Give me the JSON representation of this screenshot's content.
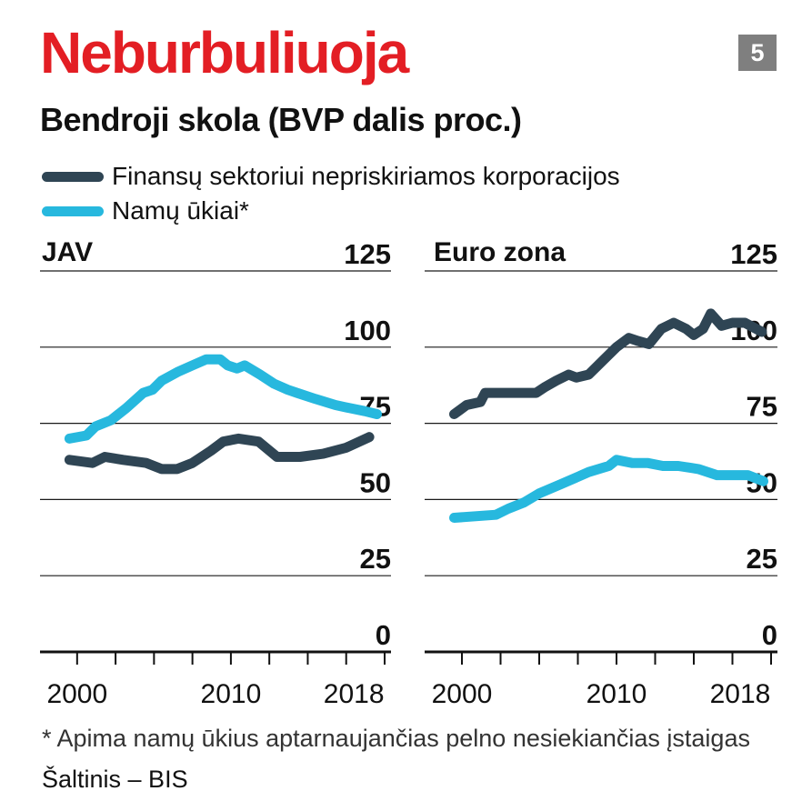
{
  "header": {
    "title": "Neburbuliuoja",
    "badge": "5",
    "subtitle": "Bendroji skola (BVP dalis proc.)"
  },
  "legend": [
    {
      "label": "Finansų sektoriui nepriskiriamos korporacijos",
      "color": "#2f4554"
    },
    {
      "label": "Namų ūkiai*",
      "color": "#27b8de"
    }
  ],
  "footnote": "* Apima namų ūkius aptarnaujančias pelno nesiekiančias įstaigas",
  "source": "Šaltinis – BIS",
  "chart_data": [
    {
      "type": "line",
      "title": "JAV",
      "ylim": [
        0,
        125
      ],
      "yticks": [
        0,
        25,
        50,
        75,
        100,
        125
      ],
      "xlim": [
        1998,
        2020
      ],
      "xticks": [
        2000,
        2010,
        2018
      ],
      "grid": true,
      "series": [
        {
          "name": "Finansų sektoriui nepriskiriamos korporacijos",
          "color": "#2f4554",
          "x": [
            1999.5,
            2001,
            2001.8,
            2003,
            2004.5,
            2005.5,
            2006.5,
            2007.5,
            2008.7,
            2009.5,
            2010.5,
            2011.8,
            2013,
            2014.5,
            2016,
            2017.5,
            2019
          ],
          "y": [
            63,
            62,
            64,
            63,
            62,
            60,
            60,
            62,
            66,
            69,
            70,
            69,
            64,
            64,
            65,
            67,
            70.5
          ]
        },
        {
          "name": "Namų ūkiai*",
          "color": "#27b8de",
          "x": [
            1999.5,
            2000.6,
            2001.2,
            2002.2,
            2003.2,
            2004.3,
            2004.9,
            2005.5,
            2006.6,
            2007.5,
            2008.4,
            2009.3,
            2009.8,
            2010.4,
            2010.9,
            2011.9,
            2012.8,
            2013.7,
            2014.3,
            2015.5,
            2016.8,
            2017.7,
            2018.7,
            2019.5
          ],
          "y": [
            70,
            71,
            74,
            76,
            80,
            85,
            86,
            89,
            92,
            94,
            96,
            96,
            94,
            93,
            94,
            91,
            88,
            86,
            85,
            83,
            81,
            80,
            79,
            78
          ]
        }
      ]
    },
    {
      "type": "line",
      "title": "Euro zona",
      "ylim": [
        0,
        125
      ],
      "yticks": [
        0,
        25,
        50,
        75,
        100,
        125
      ],
      "xlim": [
        1998,
        2020
      ],
      "xticks": [
        2000,
        2010,
        2018
      ],
      "grid": true,
      "series": [
        {
          "name": "Finansų sektoriui nepriskiriamos korporacijos",
          "color": "#2f4554",
          "x": [
            1999.5,
            2000.3,
            2001.2,
            2001.5,
            2002.3,
            2003.2,
            2004.1,
            2004.8,
            2005.4,
            2006.1,
            2006.9,
            2007.4,
            2008.2,
            2009.0,
            2010.0,
            2010.8,
            2011.4,
            2012.1,
            2012.9,
            2013.7,
            2014.5,
            2015.0,
            2015.6,
            2016.1,
            2016.8,
            2017.5,
            2018.3,
            2019.4
          ],
          "y": [
            78,
            81,
            82,
            85,
            85,
            85,
            85,
            85,
            87,
            89,
            91,
            90,
            91,
            95,
            100,
            103,
            102,
            101,
            106,
            108,
            106,
            104,
            106,
            111,
            107,
            108,
            108,
            105
          ]
        },
        {
          "name": "Namų ūkiai*",
          "color": "#27b8de",
          "x": [
            1999.5,
            2002.2,
            2003.0,
            2004.0,
            2005.0,
            2006.4,
            2008.2,
            2009.5,
            2010.0,
            2011.0,
            2012.0,
            2013.0,
            2014.0,
            2015.3,
            2016.5,
            2017.5,
            2018.5,
            2019.5
          ],
          "y": [
            44,
            45,
            47,
            49,
            52,
            55,
            59,
            61,
            63,
            62,
            62,
            61,
            61,
            60,
            58,
            58,
            58,
            56
          ]
        }
      ]
    }
  ]
}
